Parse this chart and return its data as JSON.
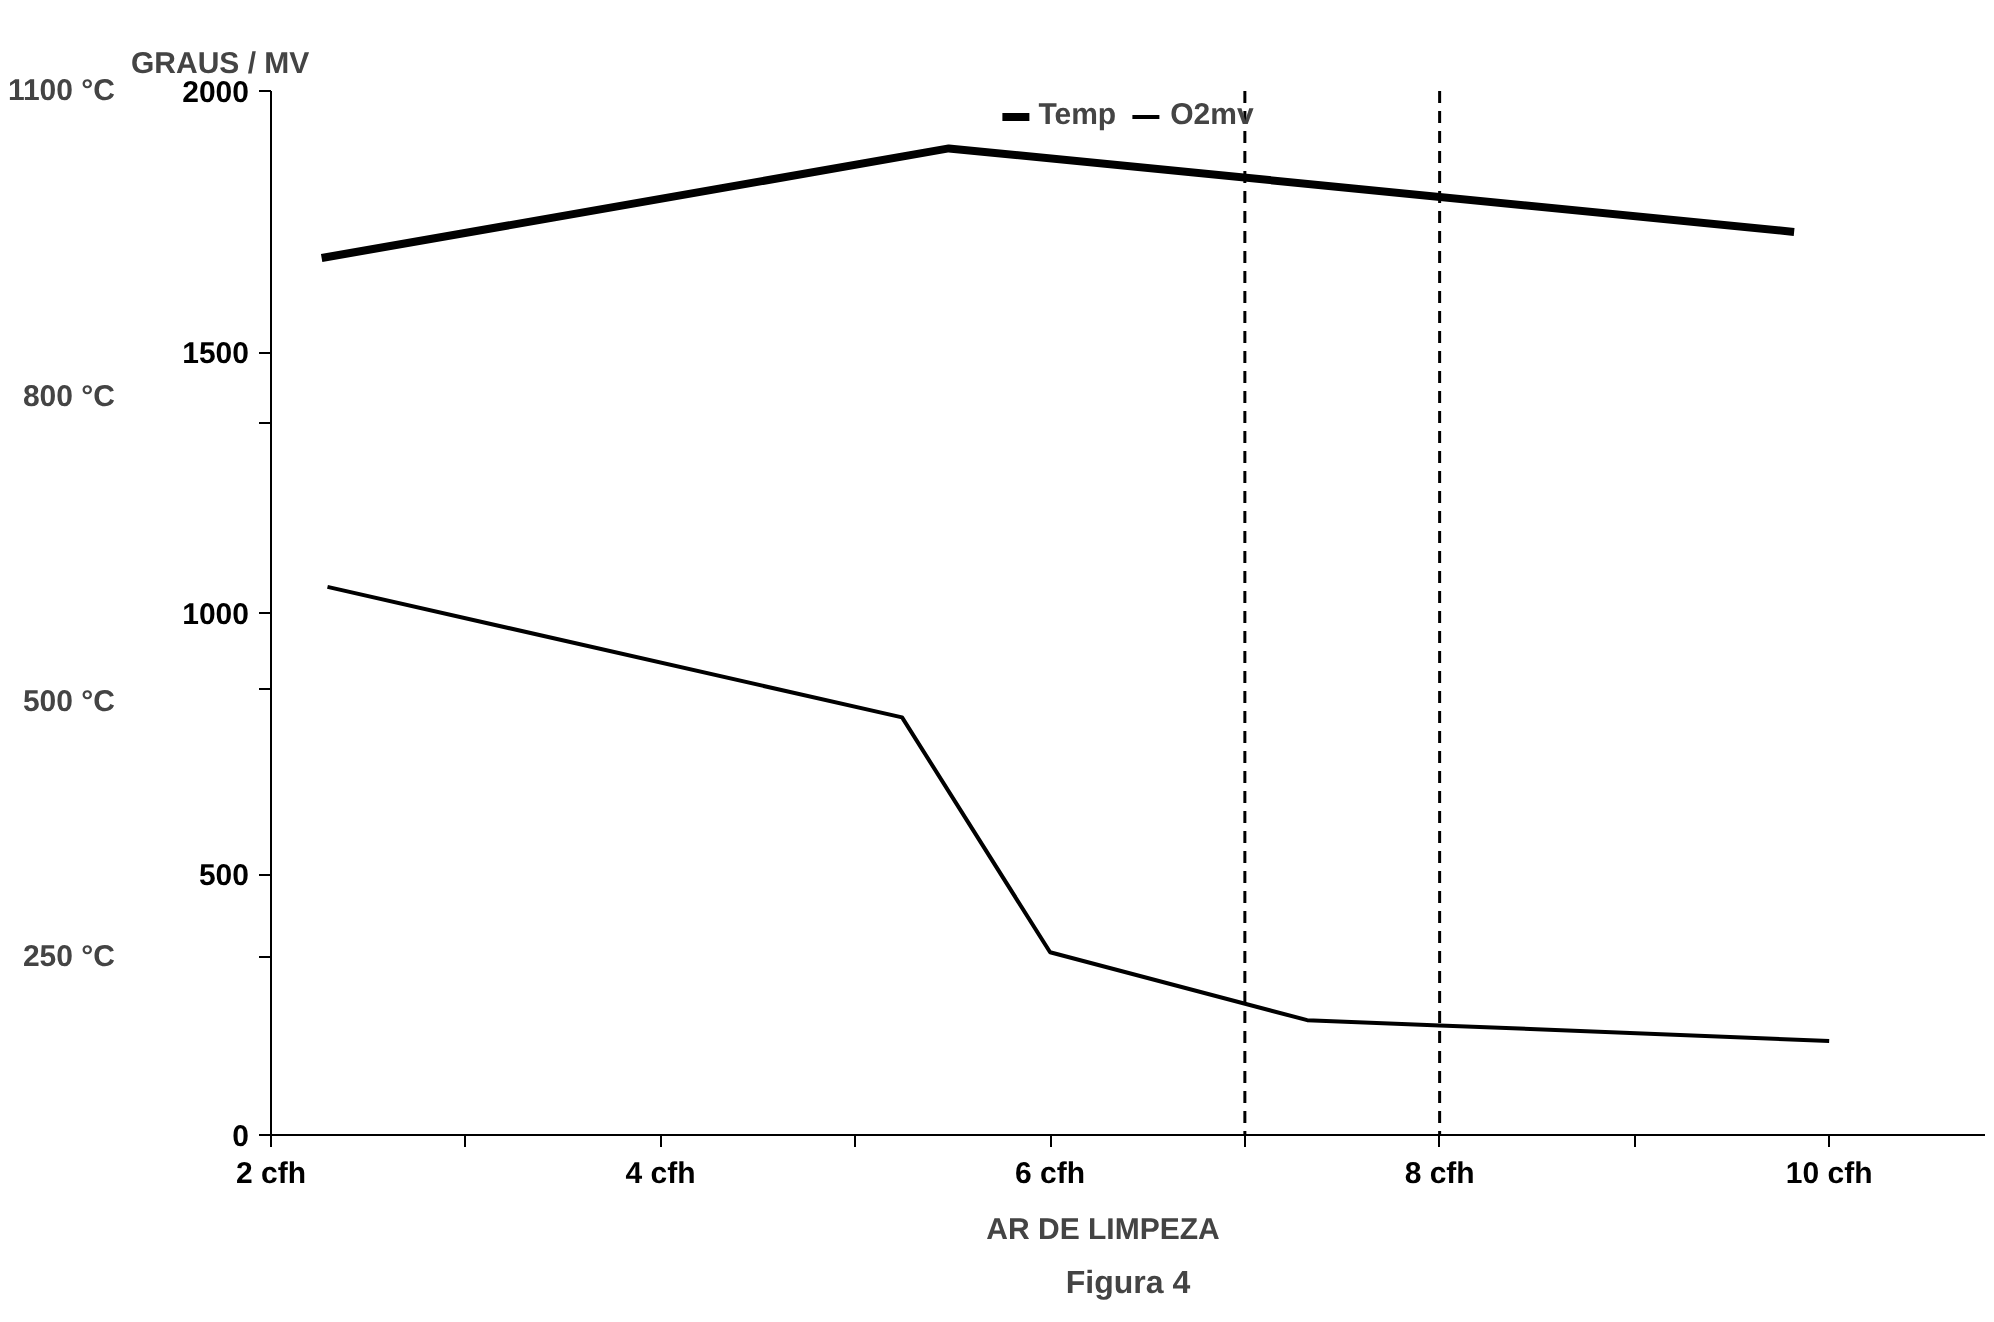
{
  "chart_data": {
    "type": "line",
    "title": "Figura 4",
    "xlabel": "AR    DE    LIMPEZA",
    "ylabel": "GRAUS / MV",
    "xlim": [
      2,
      10.8
    ],
    "xticks": [
      {
        "value": 2,
        "label": "2 cfh"
      },
      {
        "value": 3,
        "label": null
      },
      {
        "value": 4,
        "label": "4 cfh"
      },
      {
        "value": 5,
        "label": null
      },
      {
        "value": 6,
        "label": "6 cfh"
      },
      {
        "value": 7,
        "label": null
      },
      {
        "value": 8,
        "label": "8 cfh"
      },
      {
        "value": 9,
        "label": null
      },
      {
        "value": 10,
        "label": "10 cfh"
      }
    ],
    "ylim": [
      0,
      2000
    ],
    "yticks": [
      0,
      {
        "value": 341,
        "label": null
      },
      500,
      {
        "value": 856,
        "label": null
      },
      1000,
      {
        "value": 1365,
        "label": null
      },
      1500,
      2000
    ],
    "y2lim": [
      75,
      1100
    ],
    "y2ticks": [
      {
        "value": 250,
        "label": "250 °C"
      },
      {
        "value": 500,
        "label": "500 °C"
      },
      {
        "value": 800,
        "label": "800 °C"
      },
      {
        "value": 1100,
        "label": "1100 °C"
      }
    ],
    "series": [
      {
        "name": "Temp",
        "color": "#000000",
        "x": [
          2.26,
          5.48,
          9.82
        ],
        "values": [
          1680,
          1890,
          1730
        ]
      },
      {
        "name": "O2mv",
        "color": "#000000",
        "x": [
          2.29,
          5.24,
          6.0,
          7.32,
          8.0,
          10.0
        ],
        "values": [
          1050,
          800,
          350,
          220,
          210,
          180
        ]
      }
    ],
    "ref_lines": [
      {
        "axis": "x",
        "value": 7,
        "label": null,
        "line_style": "dashed",
        "color": "#000000"
      },
      {
        "axis": "x",
        "value": 8,
        "label": null,
        "line_style": "dashed",
        "color": "#000000"
      }
    ],
    "legend": "top",
    "grid": false,
    "marker": "none",
    "line_style": "solid"
  }
}
